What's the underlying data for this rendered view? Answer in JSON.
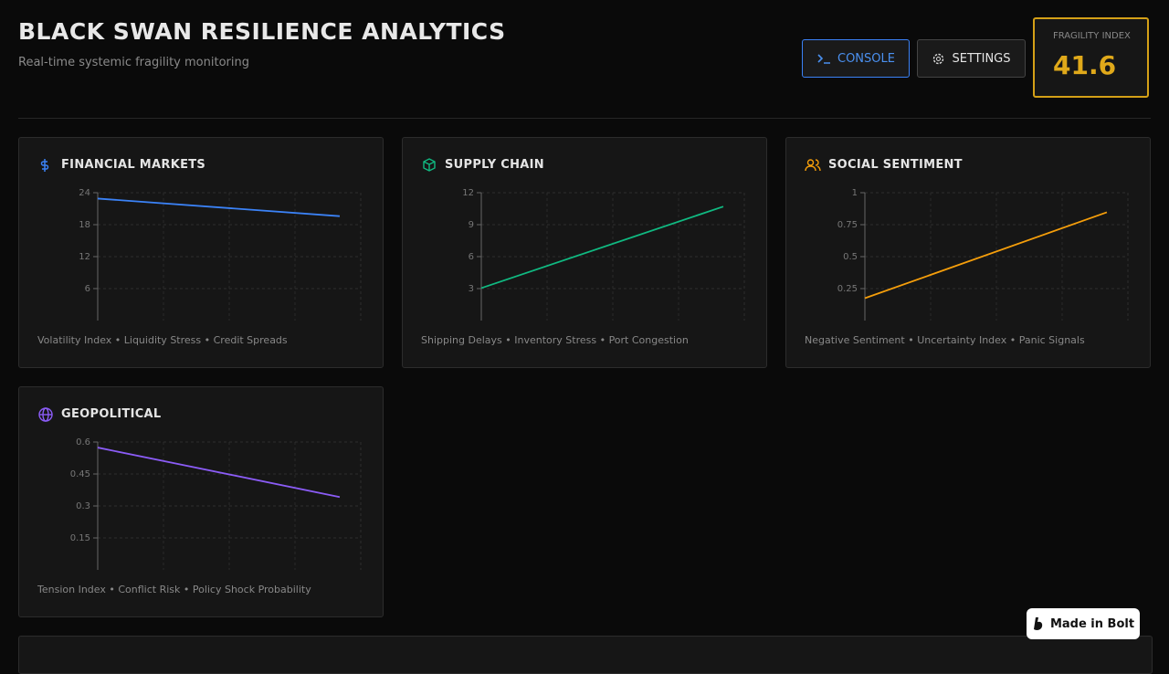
{
  "header": {
    "title": "BLACK SWAN RESILIENCE ANALYTICS",
    "subtitle": "Real-time systemic fragility monitoring",
    "buttons": [
      "CONSOLE",
      "SETTINGS"
    ],
    "fragility_label": "FRAGILITY INDEX",
    "fragility_value": 41.6
  },
  "chart_data": [
    {
      "type": "line",
      "title": "FINANCIAL MARKETS",
      "caption": "Volatility Index • Liquidity Stress • Credit Spreads",
      "categories": [
        null,
        null
      ],
      "values": [
        22.9,
        19.6
      ],
      "color": "#3b82f6",
      "ylim": [
        0,
        24
      ],
      "yticks": [
        6,
        12,
        18,
        24
      ],
      "grid": true
    },
    {
      "type": "line",
      "title": "SUPPLY CHAIN",
      "caption": "Shipping Delays • Inventory Stress • Port Congestion",
      "categories": [
        null,
        null
      ],
      "values": [
        3.05,
        10.7
      ],
      "color": "#10b981",
      "ylim": [
        0,
        12
      ],
      "yticks": [
        3,
        6,
        9,
        12
      ],
      "grid": true
    },
    {
      "type": "line",
      "title": "SOCIAL SENTIMENT",
      "caption": "Negative Sentiment • Uncertainty Index • Panic Signals",
      "categories": [
        null,
        null
      ],
      "values": [
        0.175,
        0.847
      ],
      "color": "#f59e0b",
      "ylim": [
        0,
        1
      ],
      "yticks": [
        0.25,
        0.5,
        0.75,
        1
      ],
      "grid": true
    },
    {
      "type": "line",
      "title": "GEOPOLITICAL",
      "caption": "Tension Index • Conflict Risk • Policy Shock Probability",
      "categories": [
        null,
        null
      ],
      "values": [
        0.574,
        0.342
      ],
      "color": "#8b5cf6",
      "ylim": [
        0,
        0.6
      ],
      "yticks": [
        0.15,
        0.3,
        0.45,
        0.6
      ],
      "grid": true
    }
  ],
  "badge": "Made in Bolt"
}
